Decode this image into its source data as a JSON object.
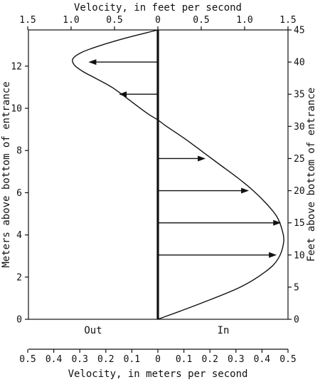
{
  "chart_data": {
    "type": "line",
    "x_top": {
      "label": "Velocity, in feet per second",
      "ticks": [
        "1.5",
        "1.0",
        "0.5",
        "0",
        "0.5",
        "1.0",
        "1.5"
      ],
      "tick_values_ft_s": [
        -1.5,
        -1.0,
        -0.5,
        0,
        0.5,
        1.0,
        1.5
      ]
    },
    "x_bottom": {
      "label": "Velocity, in meters per second",
      "ticks": [
        "0.5",
        "0.4",
        "0.3",
        "0.2",
        "0.1",
        "0",
        "0.1",
        "0.2",
        "0.3",
        "0.4",
        "0.5"
      ],
      "tick_values_m_s": [
        -0.5,
        -0.4,
        -0.3,
        -0.2,
        -0.1,
        0,
        0.1,
        0.2,
        0.3,
        0.4,
        0.5
      ]
    },
    "y_left": {
      "label": "Meters above bottom of entrance",
      "ticks": [
        "0",
        "2",
        "4",
        "6",
        "8",
        "10",
        "12"
      ],
      "tick_values_m": [
        0,
        2,
        4,
        6,
        8,
        10,
        12
      ]
    },
    "y_right": {
      "label": "Feet above bottom of entrance",
      "ticks": [
        "0",
        "5",
        "10",
        "15",
        "20",
        "25",
        "30",
        "35",
        "40",
        "45"
      ],
      "tick_values_ft": [
        0,
        5,
        10,
        15,
        20,
        25,
        30,
        35,
        40,
        45
      ]
    },
    "direction_labels": {
      "out": "Out",
      "in": "In"
    },
    "xlim_ft_s": [
      -1.5,
      1.5
    ],
    "ylim_ft": [
      0,
      45
    ],
    "profile": {
      "x_ft_s": [
        0,
        0.5,
        0.95,
        1.25,
        1.39,
        1.45,
        1.43,
        1.37,
        1.25,
        1.1,
        0.92,
        0.72,
        0.52,
        0.32,
        0.1,
        0,
        -0.12,
        -0.32,
        -0.52,
        -0.72,
        -0.86,
        -0.96,
        -0.98,
        -0.88,
        -0.68,
        -0.38,
        0
      ],
      "y_ft": [
        0,
        2.5,
        5,
        7.5,
        9.5,
        12,
        14,
        16,
        18,
        20,
        22,
        24,
        26,
        28,
        30,
        31,
        32,
        34,
        36,
        37.5,
        38.5,
        39.5,
        40.5,
        41.5,
        42.5,
        43.7,
        45
      ]
    },
    "velocity_arrows": [
      {
        "y_ft": 10,
        "x_ft_s": 1.37
      },
      {
        "y_ft": 15,
        "x_ft_s": 1.42
      },
      {
        "y_ft": 20,
        "x_ft_s": 1.05
      },
      {
        "y_ft": 25,
        "x_ft_s": 0.55
      },
      {
        "y_ft": 35,
        "x_ft_s": -0.45
      },
      {
        "y_ft": 40,
        "x_ft_s": -0.8
      }
    ]
  }
}
